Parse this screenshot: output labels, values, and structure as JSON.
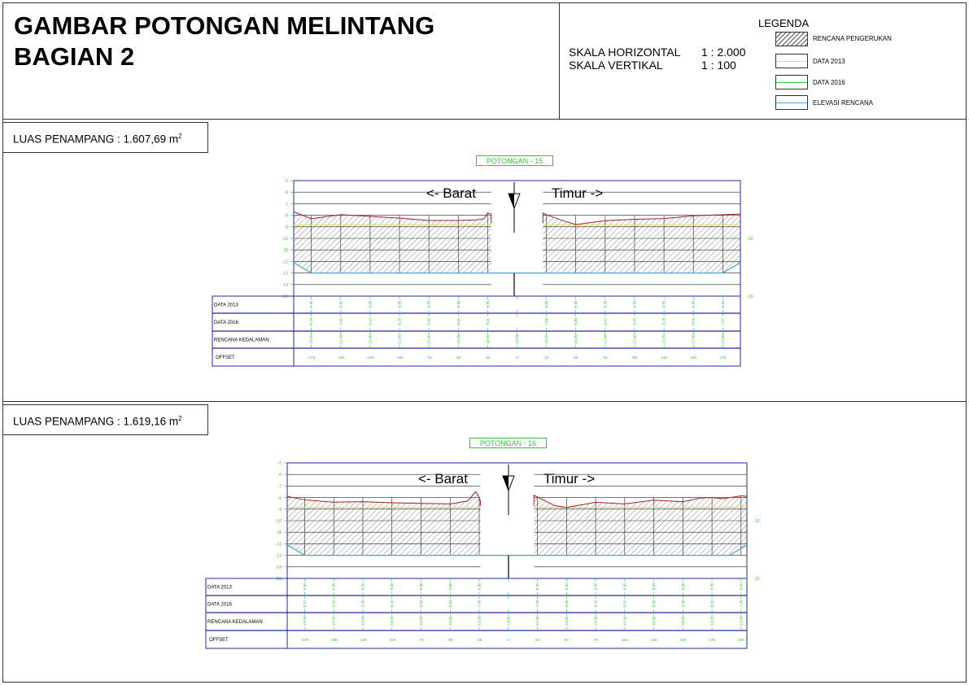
{
  "header": {
    "title_line1": "GAMBAR POTONGAN MELINTANG",
    "title_line2": "BAGIAN 2",
    "scale_h_label": "SKALA HORIZONTAL",
    "scale_h_value": "1 : 2.000",
    "scale_v_label": "SKALA VERTIKAL",
    "scale_v_value": "1 : 100"
  },
  "legend": {
    "title": "LEGENDA",
    "items": [
      {
        "label": "RENCANA PENGERUKAN",
        "style": "hatch"
      },
      {
        "label": "DATA 2013",
        "color": "#e8e34a"
      },
      {
        "label": "DATA 2016",
        "color": "#2ec82e"
      },
      {
        "label": "ELEVASI RENCANA",
        "color": "#4aa3d8"
      }
    ]
  },
  "colors": {
    "profile_2013": "#e8e34a",
    "profile_2016": "#2ec82e",
    "design_elevation": "#4aa3d8",
    "seabed": "#a02020",
    "grid": "#1f2a9e",
    "axis_text": "#2ec82e"
  },
  "table_labels": [
    "DATA 2013",
    "DATA 2016",
    "RENCANA KEDALAMAN",
    "OFFSET"
  ],
  "sections": [
    {
      "area_label": "LUAS PENAMPANG : 1.607,69 m",
      "area_unit_sup": "2",
      "chart_title": "POTONGAN - 15",
      "west_label": "<- Barat",
      "east_label": "Timur  ->",
      "right_axis_labels": [
        "-10",
        "-15"
      ],
      "chart_data": {
        "type": "cross-section",
        "y_ticks": [
          "-5",
          "-6",
          "-7",
          "-8",
          "-9",
          "-10",
          "-11",
          "-12",
          "-13",
          "-14",
          "-15"
        ],
        "ylim": [
          -15,
          -5
        ],
        "offsets": [
          -175,
          -150,
          -125,
          -100,
          -75,
          -50,
          -25,
          0,
          25,
          50,
          75,
          100,
          125,
          150,
          175
        ],
        "offset_labels": [
          "-175",
          "-150",
          "-125",
          "-100",
          "-75",
          "-50",
          "-25",
          "0",
          "25",
          "50",
          "75",
          "100",
          "125",
          "150",
          "175"
        ],
        "data_2013": [
          "-8.85",
          "-8.85",
          "-8.85",
          "-8.85",
          "-8.85",
          "-8.85",
          "-8.85",
          "",
          "-8.85",
          "-8.85",
          "-8.85",
          "-8.85",
          "-8.85",
          "-8.85",
          "-8.85"
        ],
        "data_2016": [
          "-8.29",
          "-7.95",
          "-8.13",
          "-8.28",
          "-8.46",
          "-8.45",
          "-8.11",
          "",
          "-7.85",
          "-8.80",
          "-8.47",
          "-8.35",
          "-8.28",
          "-8.09",
          "-7.97"
        ],
        "rencana": [
          "-13.00",
          "-13.00",
          "-13.00",
          "-13.00",
          "-13.00",
          "-13.00",
          "-13.00",
          "-13.00",
          "-13.00",
          "-13.00",
          "-13.00",
          "-13.00",
          "-13.00",
          "-13.00",
          "-13.00"
        ],
        "seabed_west": [
          [
            -190,
            -7.7
          ],
          [
            -175,
            -8.3
          ],
          [
            -150,
            -7.95
          ],
          [
            -125,
            -8.1
          ],
          [
            -100,
            -8.25
          ],
          [
            -75,
            -8.45
          ],
          [
            -50,
            -8.45
          ],
          [
            -35,
            -8.4
          ],
          [
            -28,
            -8.3
          ],
          [
            -25,
            -7.8
          ],
          [
            -22,
            -7.9
          ],
          [
            -22,
            -8.7
          ]
        ],
        "seabed_east": [
          [
            22,
            -8.7
          ],
          [
            22,
            -7.8
          ],
          [
            26,
            -8.0
          ],
          [
            40,
            -8.5
          ],
          [
            50,
            -8.8
          ],
          [
            75,
            -8.47
          ],
          [
            100,
            -8.35
          ],
          [
            125,
            -8.28
          ],
          [
            150,
            -8.05
          ],
          [
            175,
            -7.95
          ],
          [
            190,
            -7.9
          ]
        ],
        "y_2013": -8.85,
        "design_depth": -13.0,
        "x_min": -190,
        "x_max": 190,
        "channel_bottom": [
          -175,
          175
        ],
        "channel_gap": [
          -22,
          22
        ]
      }
    },
    {
      "area_label": "LUAS PENAMPANG : 1.619,16 m",
      "area_unit_sup": "2",
      "chart_title": "POTONGAN - 16",
      "west_label": "<- Barat",
      "east_label": "Timur  ->",
      "right_axis_labels": [
        "-10",
        "-15"
      ],
      "chart_data": {
        "type": "cross-section",
        "y_ticks": [
          "-5",
          "-6",
          "-7",
          "-8",
          "-9",
          "-10",
          "-11",
          "-12",
          "-13",
          "-14",
          "-15"
        ],
        "ylim": [
          -15,
          -5
        ],
        "offsets": [
          -175,
          -150,
          -125,
          -100,
          -75,
          -50,
          -25,
          0,
          25,
          50,
          75,
          100,
          125,
          150,
          175,
          200
        ],
        "offset_labels": [
          "-175",
          "-150",
          "-125",
          "-100",
          "-75",
          "-50",
          "-25",
          "0",
          "25",
          "50",
          "75",
          "100",
          "125",
          "150",
          "175",
          "200"
        ],
        "data_2013": [
          "-8.85",
          "-8.85",
          "-8.85",
          "-8.85",
          "-8.85",
          "-8.85",
          "-8.85",
          "",
          "-8.85",
          "-8.85",
          "-8.85",
          "-8.85",
          "-8.85",
          "-8.85",
          "-8.85",
          "-8.85"
        ],
        "data_2016": [
          "-8.21",
          "-8.41",
          "-8.38",
          "-8.45",
          "-8.51",
          "-8.54",
          "-7.46",
          "",
          "-7.98",
          "-8.86",
          "-8.41",
          "-8.55",
          "-8.22",
          "-8.36",
          "-8.02",
          "-7.85"
        ],
        "rencana": [
          "-13.00",
          "-13.00",
          "-13.00",
          "-13.00",
          "-13.00",
          "-13.00",
          "-13.00",
          "-13.00",
          "-13.00",
          "-13.00",
          "-13.00",
          "-13.00",
          "-13.00",
          "-13.00",
          "-13.00",
          "-13.00"
        ],
        "seabed_west": [
          [
            -190,
            -7.9
          ],
          [
            -175,
            -8.2
          ],
          [
            -150,
            -8.4
          ],
          [
            -125,
            -8.35
          ],
          [
            -100,
            -8.45
          ],
          [
            -75,
            -8.5
          ],
          [
            -50,
            -8.55
          ],
          [
            -35,
            -8.3
          ],
          [
            -28,
            -7.5
          ],
          [
            -26,
            -7.8
          ],
          [
            -24,
            -8.3
          ],
          [
            -24,
            -8.7
          ]
        ],
        "seabed_east": [
          [
            22,
            -8.7
          ],
          [
            22,
            -7.8
          ],
          [
            26,
            -8.0
          ],
          [
            40,
            -8.7
          ],
          [
            50,
            -8.86
          ],
          [
            75,
            -8.41
          ],
          [
            100,
            -8.55
          ],
          [
            125,
            -8.22
          ],
          [
            150,
            -8.36
          ],
          [
            165,
            -8.05
          ],
          [
            175,
            -8.0
          ],
          [
            185,
            -8.1
          ],
          [
            200,
            -7.85
          ],
          [
            205,
            -7.9
          ]
        ],
        "y_2013": -8.85,
        "design_depth": -13.0,
        "x_min": -190,
        "x_max": 205,
        "channel_bottom": [
          -175,
          190
        ],
        "channel_gap": [
          -24,
          22
        ]
      }
    }
  ]
}
